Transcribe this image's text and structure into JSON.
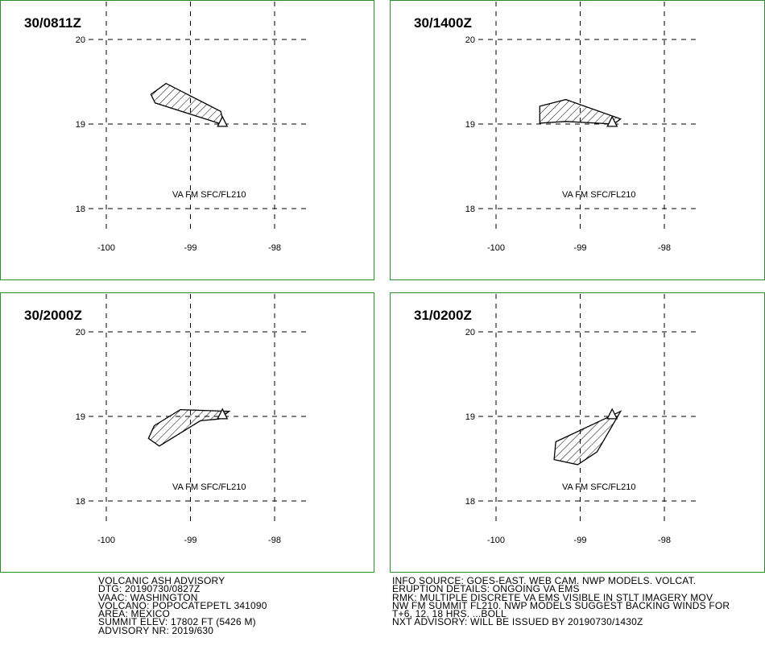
{
  "map": {
    "lon_ticks": [
      -100,
      -99,
      -98
    ],
    "lat_ticks": [
      20,
      19,
      18
    ],
    "lon_labels": [
      "-100",
      "-99",
      "-98"
    ],
    "lat_labels": [
      "20",
      "19",
      "18"
    ],
    "grid": "dashed",
    "volcano_marker": "triangle-icon",
    "volcano_location": {
      "lon": -98.62,
      "lat": 19.02
    },
    "colors": {
      "frame": "#2e8b2e",
      "ink": "#000000",
      "background": "#ffffff"
    }
  },
  "panels": [
    {
      "time": "30/0811Z",
      "label": "VA FM SFC/FL210",
      "polygon": [
        [
          -99.47,
          19.35
        ],
        [
          -99.29,
          19.48
        ],
        [
          -98.64,
          19.15
        ],
        [
          -98.6,
          18.99
        ],
        [
          -99.42,
          19.25
        ]
      ]
    },
    {
      "time": "30/1400Z",
      "label": "VA FM SFC/FL210",
      "polygon": [
        [
          -99.48,
          19.21
        ],
        [
          -99.17,
          19.29
        ],
        [
          -98.52,
          19.06
        ],
        [
          -98.6,
          19.0
        ],
        [
          -99.17,
          19.03
        ],
        [
          -99.48,
          19.01
        ]
      ]
    },
    {
      "time": "30/2000Z",
      "label": "VA FM SFC/FL210",
      "polygon": [
        [
          -99.43,
          18.89
        ],
        [
          -99.12,
          19.08
        ],
        [
          -98.54,
          19.06
        ],
        [
          -98.66,
          18.97
        ],
        [
          -98.88,
          18.95
        ],
        [
          -99.37,
          18.65
        ],
        [
          -99.5,
          18.74
        ]
      ]
    },
    {
      "time": "31/0200Z",
      "label": "VA FM SFC/FL210",
      "polygon": [
        [
          -99.29,
          18.7
        ],
        [
          -98.52,
          19.06
        ],
        [
          -98.8,
          18.58
        ],
        [
          -99.03,
          18.43
        ],
        [
          -99.31,
          18.49
        ]
      ]
    }
  ],
  "advisory": {
    "left_lines": [
      "VOLCANIC ASH ADVISORY",
      "DTG: 20190730/0827Z",
      "VAAC: WASHINGTON",
      "VOLCANO: POPOCATEPETL 341090",
      "AREA: MEXICO",
      "SUMMIT ELEV: 17802 FT (5426 M)",
      "ADVISORY NR: 2019/630"
    ],
    "right_lines": [
      "INFO SOURCE: GOES-EAST. WEB CAM. NWP MODELS. VOLCAT.",
      "ERUPTION DETAILS: ONGOING VA EMS",
      "RMK: MULTIPLE DISCRETE VA EMS VISIBLE IN STLT IMAGERY MOV",
      "NW FM SUMMIT FL210. NWP MODELS SUGGEST BACKING WINDS FOR",
      "T+6, 12, 18 HRS. ...BOLL",
      "NXT ADVISORY: WILL BE ISSUED BY 20190730/1430Z"
    ]
  }
}
